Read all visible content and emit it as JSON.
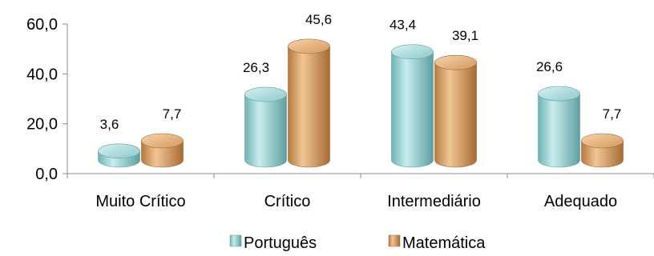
{
  "chart_data": {
    "type": "bar",
    "categories": [
      "Muito Crítico",
      "Crítico",
      "Intermediário",
      "Adequado"
    ],
    "series": [
      {
        "name": "Português",
        "values": [
          3.6,
          26.3,
          43.4,
          26.6
        ],
        "color": "#9fd4d6"
      },
      {
        "name": "Matemática",
        "values": [
          7.7,
          45.6,
          39.1,
          7.7
        ],
        "color": "#d9a46c"
      }
    ],
    "data_labels": [
      [
        "3,6",
        "26,3",
        "43,4",
        "26,6"
      ],
      [
        "7,7",
        "45,6",
        "39,1",
        "7,7"
      ]
    ],
    "yticks": [
      "0,0",
      "20,0",
      "40,0",
      "60,0"
    ],
    "ylim": [
      0,
      60
    ],
    "style": "3d-cylinder",
    "legend_position": "bottom"
  }
}
